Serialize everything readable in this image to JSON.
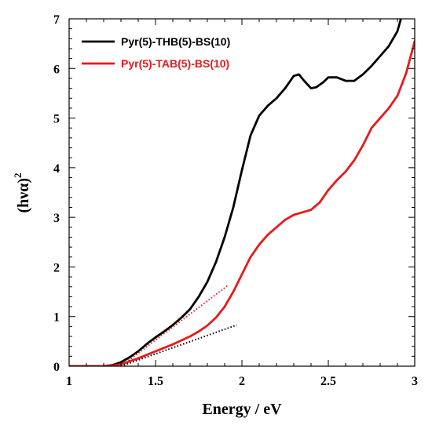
{
  "chart_data": {
    "type": "line",
    "xlabel": "Energy / eV",
    "ylabel": "(hνα)",
    "ylabel_superscript": "2",
    "xlim": [
      1,
      3
    ],
    "ylim": [
      0,
      7
    ],
    "xticks": [
      1,
      1.5,
      2,
      2.5,
      3
    ],
    "xtick_labels": [
      "1",
      "1.5",
      "2",
      "2.5",
      "3"
    ],
    "yticks": [
      0,
      1,
      2,
      3,
      4,
      5,
      6,
      7
    ],
    "ytick_labels": [
      "0",
      "1",
      "2",
      "3",
      "4",
      "5",
      "6",
      "7"
    ],
    "grid": false,
    "legend_position": "top-left",
    "series": [
      {
        "name": "Pyr(5)-THB(5)-BS(10)",
        "color": "#000000",
        "style": "solid",
        "x": [
          1.0,
          1.1,
          1.2,
          1.25,
          1.3,
          1.35,
          1.4,
          1.45,
          1.5,
          1.55,
          1.6,
          1.65,
          1.7,
          1.75,
          1.8,
          1.85,
          1.9,
          1.95,
          2.0,
          2.05,
          2.1,
          2.15,
          2.2,
          2.25,
          2.3,
          2.33,
          2.36,
          2.4,
          2.43,
          2.47,
          2.5,
          2.55,
          2.6,
          2.65,
          2.7,
          2.75,
          2.8,
          2.85,
          2.9,
          2.92
        ],
        "y": [
          0,
          0,
          0,
          0.02,
          0.08,
          0.18,
          0.3,
          0.45,
          0.58,
          0.7,
          0.83,
          0.98,
          1.15,
          1.4,
          1.7,
          2.1,
          2.6,
          3.2,
          3.95,
          4.65,
          5.05,
          5.25,
          5.4,
          5.6,
          5.85,
          5.88,
          5.75,
          5.6,
          5.62,
          5.72,
          5.82,
          5.82,
          5.75,
          5.75,
          5.88,
          6.05,
          6.25,
          6.45,
          6.75,
          7.0
        ]
      },
      {
        "name": "Pyr(5)-TAB(5)-BS(10)",
        "color": "#e8191b",
        "style": "solid",
        "x": [
          1.0,
          1.1,
          1.2,
          1.25,
          1.3,
          1.35,
          1.4,
          1.45,
          1.5,
          1.55,
          1.6,
          1.65,
          1.7,
          1.75,
          1.8,
          1.85,
          1.9,
          1.95,
          2.0,
          2.05,
          2.1,
          2.15,
          2.2,
          2.25,
          2.3,
          2.35,
          2.4,
          2.45,
          2.5,
          2.55,
          2.6,
          2.65,
          2.7,
          2.75,
          2.8,
          2.85,
          2.9,
          2.95,
          3.0
        ],
        "y": [
          0,
          0,
          0,
          0.01,
          0.04,
          0.1,
          0.16,
          0.23,
          0.3,
          0.37,
          0.44,
          0.52,
          0.6,
          0.7,
          0.82,
          0.98,
          1.2,
          1.5,
          1.85,
          2.2,
          2.45,
          2.65,
          2.8,
          2.95,
          3.05,
          3.1,
          3.15,
          3.3,
          3.55,
          3.75,
          3.92,
          4.15,
          4.45,
          4.8,
          5.0,
          5.2,
          5.45,
          5.9,
          6.55
        ]
      },
      {
        "color": "#e8191b",
        "style": "dotted",
        "x": [
          1.3,
          1.92
        ],
        "y": [
          0,
          1.63
        ]
      },
      {
        "color": "#000000",
        "style": "dotted",
        "x": [
          1.3,
          1.97
        ],
        "y": [
          0,
          0.83
        ]
      }
    ]
  }
}
